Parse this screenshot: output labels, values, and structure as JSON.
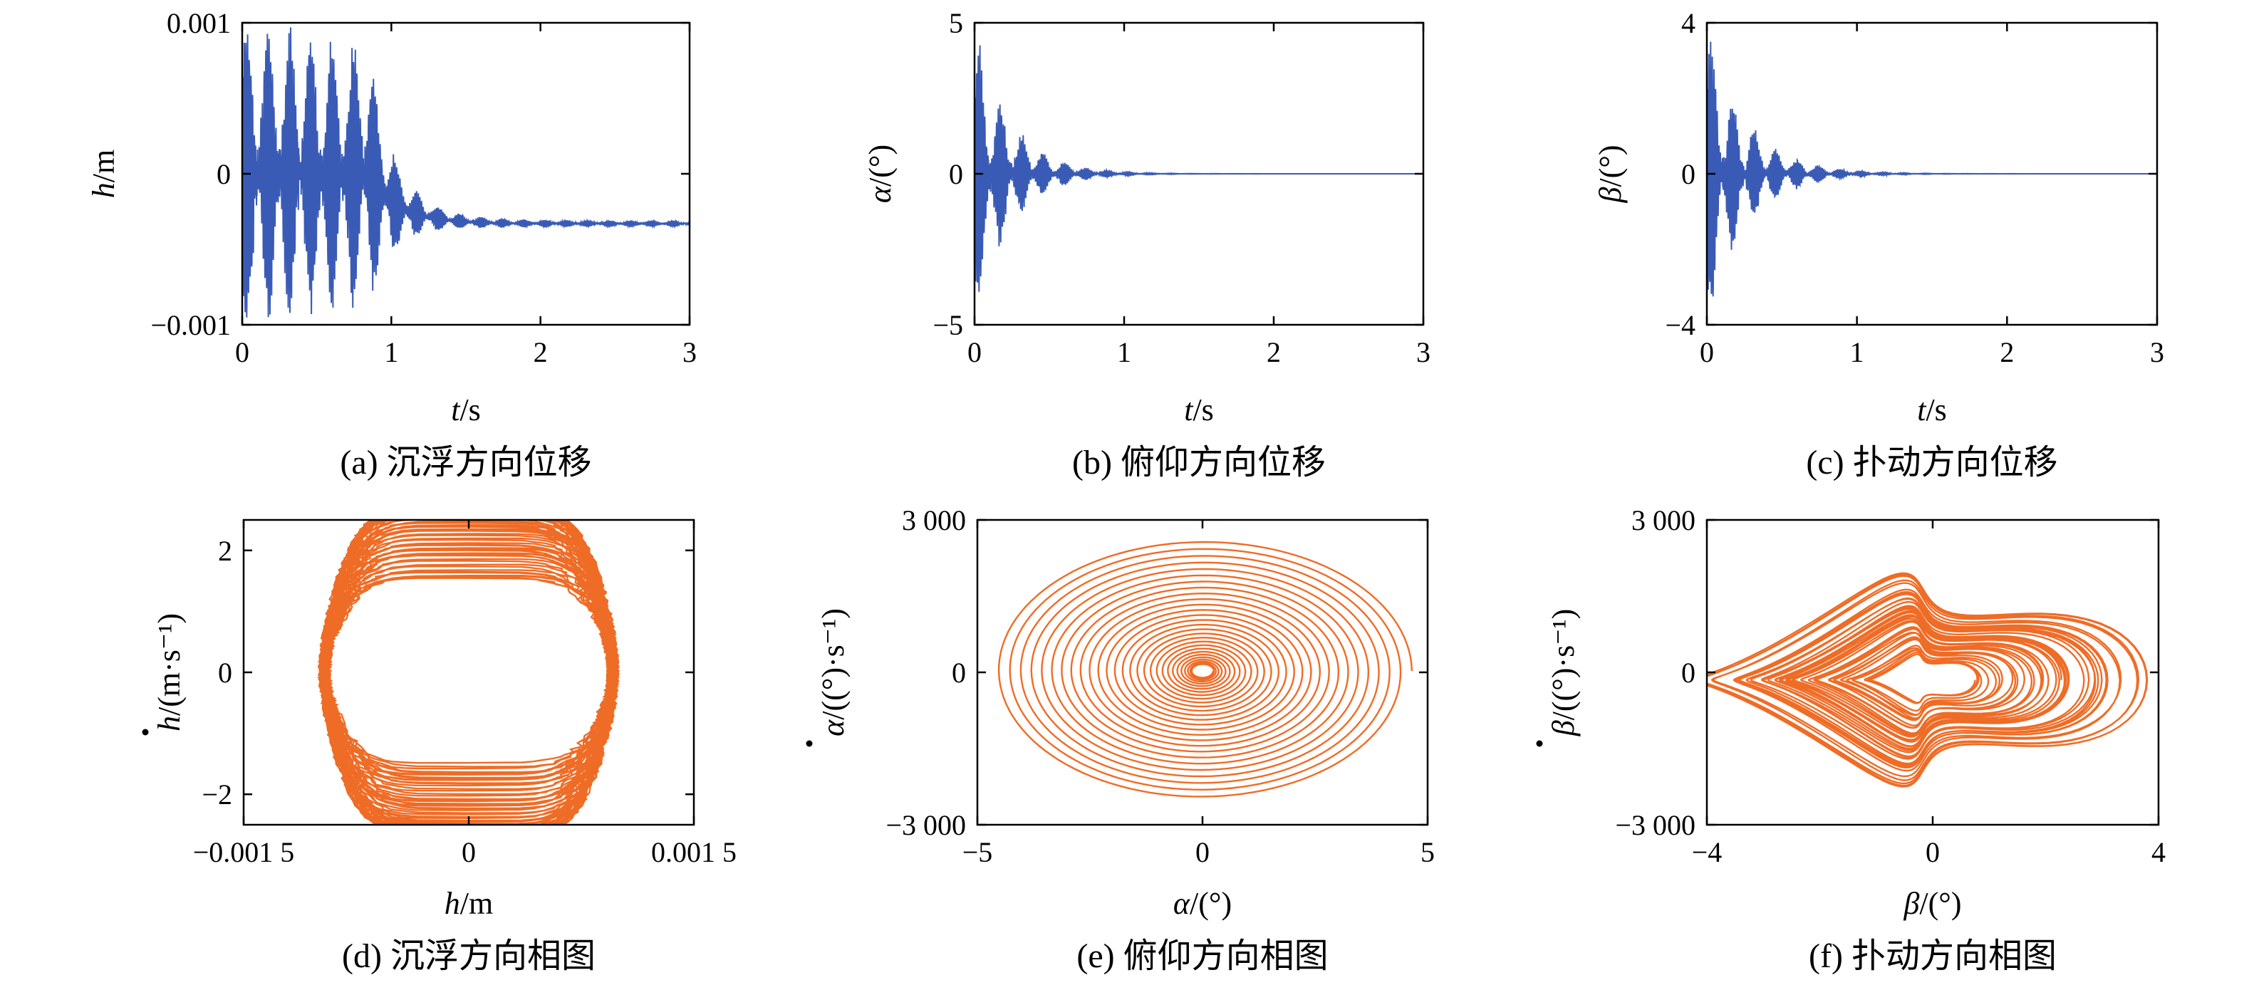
{
  "colors": {
    "time_series": "#3a5bb5",
    "phase": "#ef6c26",
    "axis": "#000000"
  },
  "chart_data": [
    {
      "id": "a",
      "type": "line",
      "caption": "(a) 沉浮方向位移",
      "xlabel_var": "t",
      "xlabel_unit": "/s",
      "ylabel_var": "h",
      "ylabel_unit": "/m",
      "xlim": [
        0,
        3
      ],
      "ylim": [
        -0.001,
        0.001
      ],
      "xticks": [
        "0",
        "1",
        "2",
        "3"
      ],
      "xtick_values": [
        0,
        1,
        2,
        3
      ],
      "yticks": [
        "−0.001",
        "0",
        "0.001"
      ],
      "ytick_values": [
        -0.001,
        0,
        0.001
      ],
      "series": [
        {
          "color": "#3a5bb5",
          "signal": {
            "amp_start": 0.00095,
            "decay_to": 0.00012,
            "offset_end": -0.00033,
            "transition_t": 0.85
          }
        }
      ]
    },
    {
      "id": "b",
      "type": "line",
      "caption": "(b) 俯仰方向位移",
      "xlabel_var": "t",
      "xlabel_unit": "/s",
      "ylabel_var": "α",
      "ylabel_unit": "/(°)",
      "xlim": [
        0,
        3
      ],
      "ylim": [
        -5,
        5
      ],
      "xticks": [
        "0",
        "1",
        "2",
        "3"
      ],
      "xtick_values": [
        0,
        1,
        2,
        3
      ],
      "yticks": [
        "−5",
        "0",
        "5"
      ],
      "ytick_values": [
        -5,
        0,
        5
      ],
      "series": [
        {
          "color": "#3a5bb5",
          "signal": {
            "amp_start": 4.5,
            "decay_rate": 4.2,
            "offset_end": 0
          }
        }
      ]
    },
    {
      "id": "c",
      "type": "line",
      "caption": "(c) 扑动方向位移",
      "xlabel_var": "t",
      "xlabel_unit": "/s",
      "ylabel_var": "β",
      "ylabel_unit": "/(°)",
      "xlim": [
        0,
        3
      ],
      "ylim": [
        -4,
        4
      ],
      "xticks": [
        "0",
        "1",
        "2",
        "3"
      ],
      "xtick_values": [
        0,
        1,
        2,
        3
      ],
      "yticks": [
        "−4",
        "0",
        "4"
      ],
      "ytick_values": [
        -4,
        0,
        4
      ],
      "series": [
        {
          "color": "#3a5bb5",
          "signal": {
            "amp_start": 3.6,
            "decay_rate": 3.8,
            "offset_end": 0
          }
        }
      ]
    },
    {
      "id": "d",
      "type": "line",
      "caption": "(d) 沉浮方向相图",
      "xlabel_var": "h",
      "xlabel_unit": "/m",
      "ylabel_var": "h",
      "ylabel_unit": "/(m·s⁻¹)",
      "ylabel_dot": true,
      "xlim": [
        -0.0015,
        0.0015
      ],
      "ylim": [
        -2.5,
        2.5
      ],
      "xticks": [
        "−0.001 5",
        "0",
        "0.001 5"
      ],
      "xtick_values": [
        -0.0015,
        0,
        0.0015
      ],
      "yticks": [
        "−2",
        "0",
        "2"
      ],
      "ytick_values": [
        -2,
        0,
        2
      ],
      "series": [
        {
          "color": "#ef6c26",
          "orbit": {
            "x_range": [
              -0.001,
              0.001
            ],
            "y_range": [
              -2.15,
              2.2
            ]
          }
        }
      ]
    },
    {
      "id": "e",
      "type": "line",
      "caption": "(e) 俯仰方向相图",
      "xlabel_var": "α",
      "xlabel_unit": "/(°)",
      "ylabel_var": "α",
      "ylabel_unit": "/((°)·s⁻¹)",
      "ylabel_dot": true,
      "xlim": [
        -5,
        5
      ],
      "ylim": [
        -3000,
        3000
      ],
      "xticks": [
        "−5",
        "0",
        "5"
      ],
      "xtick_values": [
        -5,
        0,
        5
      ],
      "yticks": [
        "−3 000",
        "0",
        "3 000"
      ],
      "ytick_values": [
        -3000,
        0,
        3000
      ],
      "series": [
        {
          "color": "#ef6c26",
          "orbit": {
            "x_range": [
              -4.3,
              5
            ],
            "y_range": [
              -2550,
              2600
            ]
          }
        }
      ]
    },
    {
      "id": "f",
      "type": "line",
      "caption": "(f) 扑动方向相图",
      "xlabel_var": "β",
      "xlabel_unit": "/(°)",
      "ylabel_var": "β",
      "ylabel_unit": "/((°)·s⁻¹)",
      "ylabel_dot": true,
      "xlim": [
        -4,
        4
      ],
      "ylim": [
        -3000,
        3000
      ],
      "xticks": [
        "−4",
        "0",
        "4"
      ],
      "xtick_values": [
        -4,
        0,
        4
      ],
      "yticks": [
        "−3 000",
        "0",
        "3 000"
      ],
      "ytick_values": [
        -3000,
        0,
        3000
      ],
      "series": [
        {
          "color": "#ef6c26",
          "orbit": {
            "x_range": [
              -3.6,
              3.2
            ],
            "y_range": [
              -2100,
              1800
            ]
          }
        }
      ]
    }
  ]
}
